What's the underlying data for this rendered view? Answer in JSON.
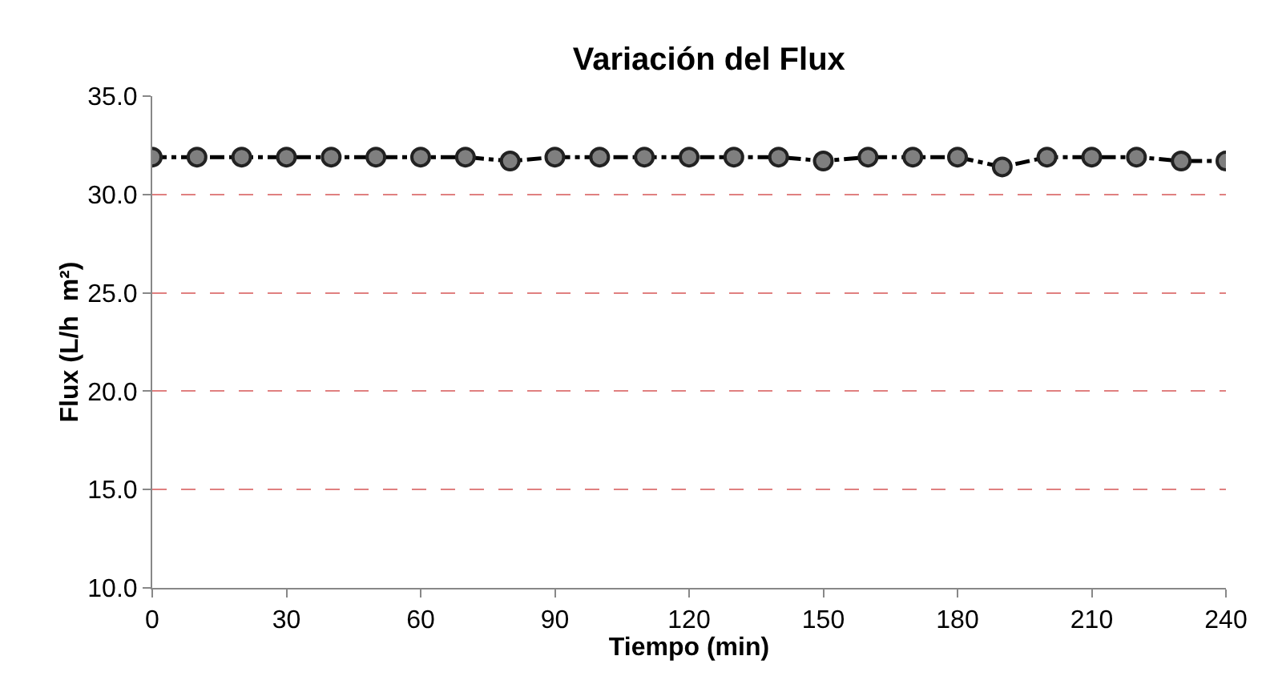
{
  "chart_data": {
    "type": "line",
    "title": "Variación del Flux",
    "xlabel": "Tiempo (min)",
    "ylabel": "Flux (L/h  m²)",
    "x": [
      0,
      10,
      20,
      30,
      40,
      50,
      60,
      70,
      80,
      90,
      100,
      110,
      120,
      130,
      140,
      150,
      160,
      170,
      180,
      190,
      200,
      210,
      220,
      230,
      240
    ],
    "series": [
      {
        "color": "#7f7f7f",
        "values": [
          31.9,
          31.9,
          31.9,
          31.9,
          31.9,
          31.9,
          31.9,
          31.9,
          31.7,
          31.9,
          31.9,
          31.9,
          31.9,
          31.9,
          31.9,
          31.7,
          31.9,
          31.9,
          31.9,
          31.4,
          31.9,
          31.9,
          31.9,
          31.7,
          31.7
        ]
      }
    ],
    "xlim": [
      0,
      240
    ],
    "xticks": [
      0,
      30,
      60,
      90,
      120,
      150,
      180,
      210,
      240
    ],
    "ylim": [
      10,
      35
    ],
    "yticks": [
      {
        "value": 10,
        "label": "10.0"
      },
      {
        "value": 15,
        "label": "15.0"
      },
      {
        "value": 20,
        "label": "20.0"
      },
      {
        "value": 25,
        "label": "25.0"
      },
      {
        "value": 30,
        "label": "30.0"
      },
      {
        "value": 35,
        "label": "35.0"
      }
    ],
    "grid": "y",
    "marker": "circle",
    "line_style": "dashed"
  }
}
